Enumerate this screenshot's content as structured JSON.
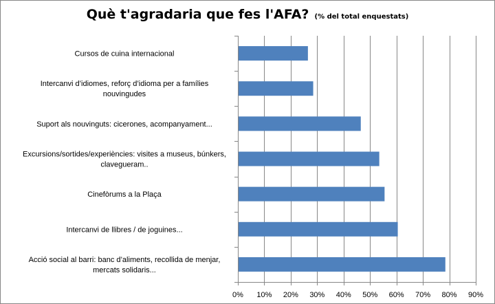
{
  "chart_data": {
    "type": "bar",
    "orientation": "horizontal",
    "title": "Què t'agradaria que fes l'AFA?",
    "subtitle": "(% del total enquestats)",
    "categories": [
      [
        "Cursos de cuina internacional"
      ],
      [
        "Intercanvi d’idiomes, reforç d’idioma per a famílies",
        "nouvingudes"
      ],
      [
        "Suport als nouvinguts: cicerones, acompanyament..."
      ],
      [
        "Excursions/sortides/experiències: visites a museus, búnkers,",
        "clavegueram.."
      ],
      [
        "Cinefòrums a la Plaça"
      ],
      [
        "Intercanvi de llibres / de joguines..."
      ],
      [
        "Acció social al barri: banc d’aliments, recollida de menjar,",
        "mercats solidaris..."
      ]
    ],
    "values": [
      26.5,
      28.5,
      46.5,
      53.5,
      55.5,
      60.5,
      78.5
    ],
    "xlim": [
      0,
      90
    ],
    "xticks": [
      "0%",
      "10%",
      "20%",
      "30%",
      "40%",
      "50%",
      "60%",
      "70%",
      "80%",
      "90%"
    ],
    "grid": true,
    "legend": "none",
    "bar_color": "#4F81BD",
    "grid_color": "#868686",
    "axis_color": "#868686"
  }
}
